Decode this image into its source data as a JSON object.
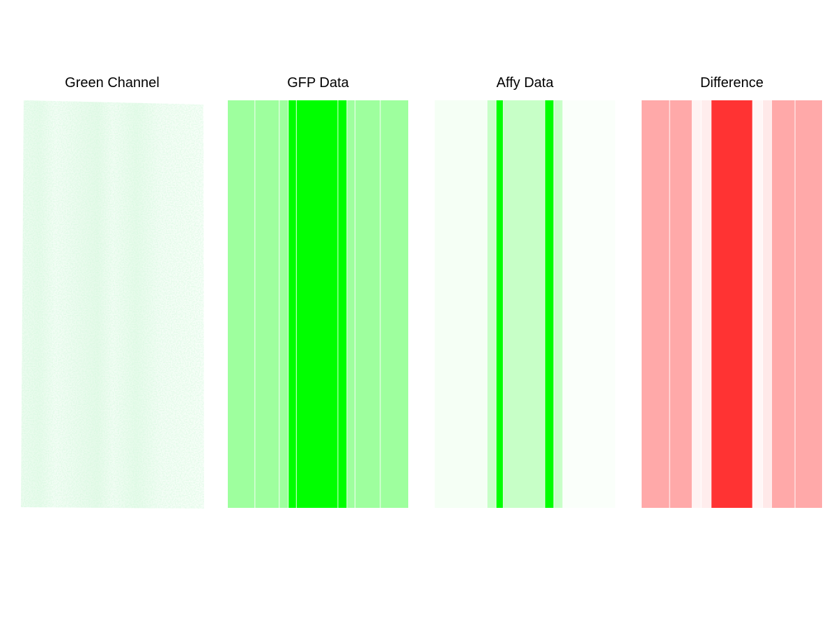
{
  "panels": [
    {
      "title": "Green Channel"
    },
    {
      "title": "GFP Data"
    },
    {
      "title": "Affy Data"
    },
    {
      "title": "Difference"
    }
  ],
  "chart_data": [
    {
      "type": "heatmap",
      "title": "Green Channel",
      "description_kind": "raw microarray image (grayscale-in-green texture)",
      "colors": {
        "low": "#ffffff",
        "high": "#c8f5d2"
      }
    },
    {
      "type": "heatmap",
      "title": "GFP Data",
      "color_low": "#ffffff",
      "color_high": "#00ff00",
      "columns": [
        {
          "width": 0.15,
          "intensity": 0.38
        },
        {
          "width": 0.135,
          "intensity": 0.38
        },
        {
          "width": 0.05,
          "intensity": 0.38
        },
        {
          "width": 0.045,
          "intensity": 1.0
        },
        {
          "width": 0.23,
          "intensity": 1.0
        },
        {
          "width": 0.05,
          "intensity": 1.0
        },
        {
          "width": 0.045,
          "intensity": 0.38
        },
        {
          "width": 0.14,
          "intensity": 0.38
        },
        {
          "width": 0.155,
          "intensity": 0.38
        }
      ]
    },
    {
      "type": "heatmap",
      "title": "Affy Data",
      "color_low": "#ffffff",
      "color_high": "#00ff00",
      "columns": [
        {
          "width": 0.29,
          "intensity": 0.04
        },
        {
          "width": 0.05,
          "intensity": 0.22
        },
        {
          "width": 0.04,
          "intensity": 1.0
        },
        {
          "width": 0.23,
          "intensity": 0.22
        },
        {
          "width": 0.05,
          "intensity": 1.0
        },
        {
          "width": 0.05,
          "intensity": 0.22
        },
        {
          "width": 0.29,
          "intensity": 0.02
        }
      ]
    },
    {
      "type": "heatmap",
      "title": "Difference",
      "color_low": "#ffffff",
      "color_high": "#ff3333",
      "columns": [
        {
          "width": 0.155,
          "intensity": 0.42
        },
        {
          "width": 0.125,
          "intensity": 0.42
        },
        {
          "width": 0.05,
          "intensity": 0.06
        },
        {
          "width": 0.055,
          "intensity": 0.09
        },
        {
          "width": 0.23,
          "intensity": 1.0
        },
        {
          "width": 0.055,
          "intensity": 0.04
        },
        {
          "width": 0.05,
          "intensity": 0.11
        },
        {
          "width": 0.13,
          "intensity": 0.42
        },
        {
          "width": 0.15,
          "intensity": 0.42
        }
      ]
    }
  ]
}
